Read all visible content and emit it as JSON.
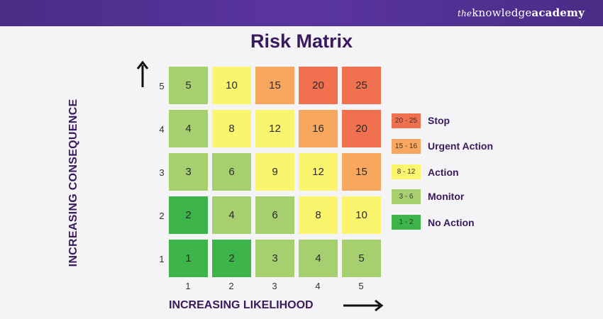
{
  "brand": {
    "the": "the",
    "knowledge": "knowledge",
    "academy": "academy"
  },
  "title": "Risk Matrix",
  "axes": {
    "y_label": "INCREASING CONSEQUENCE",
    "x_label": "INCREASING LIKELIHOOD",
    "row_labels": [
      "5",
      "4",
      "3",
      "2",
      "1"
    ],
    "col_labels": [
      "1",
      "2",
      "3",
      "4",
      "5"
    ]
  },
  "matrix": [
    [
      "5",
      "10",
      "15",
      "20",
      "25"
    ],
    [
      "4",
      "8",
      "12",
      "16",
      "20"
    ],
    [
      "3",
      "6",
      "9",
      "12",
      "15"
    ],
    [
      "2",
      "4",
      "6",
      "8",
      "10"
    ],
    [
      "1",
      "2",
      "3",
      "4",
      "5"
    ]
  ],
  "legend": [
    {
      "range": "20 - 25",
      "label": "Stop",
      "color": "#f0704f"
    },
    {
      "range": "15 - 16",
      "label": "Urgent Action",
      "color": "#f8a85e"
    },
    {
      "range": "8 - 12",
      "label": "Action",
      "color": "#fbf46d"
    },
    {
      "range": "3 - 6",
      "label": "Monitor",
      "color": "#a6d070"
    },
    {
      "range": "1 - 2",
      "label": "No Action",
      "color": "#3db44a"
    }
  ]
}
